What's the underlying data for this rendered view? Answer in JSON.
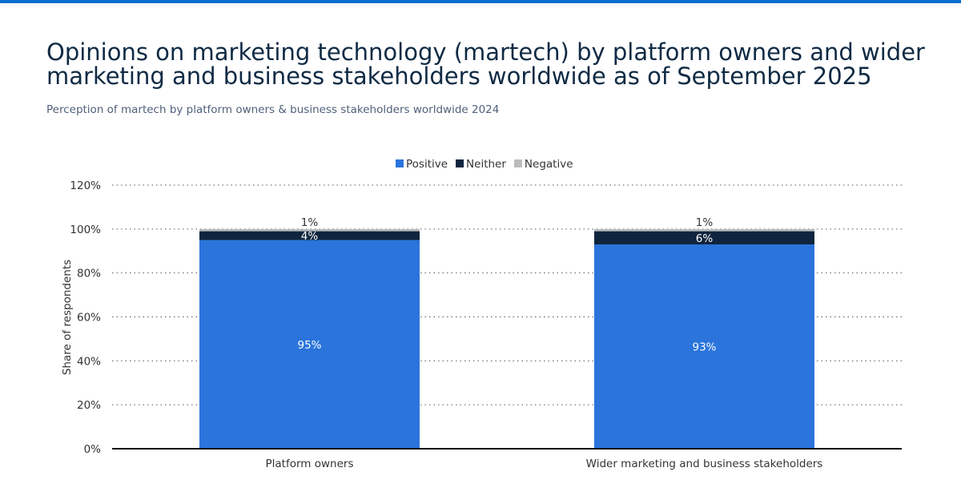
{
  "chart_data": {
    "type": "bar",
    "stacked": true,
    "title": "Opinions on marketing technology (martech) by platform owners and wider marketing and business stakeholders worldwide as of September 2025",
    "subtitle": "Perception of martech by platform owners & business stakeholders worldwide 2024",
    "xlabel": "",
    "ylabel": "Share of respondents",
    "ylim": [
      0,
      120
    ],
    "yticks": [
      0,
      20,
      40,
      60,
      80,
      100,
      120
    ],
    "ytick_labels": [
      "0%",
      "20%",
      "40%",
      "60%",
      "80%",
      "100%",
      "120%"
    ],
    "grid": true,
    "legend_placement": "top",
    "categories": [
      "Platform owners",
      "Wider marketing and business stakeholders"
    ],
    "series": [
      {
        "name": "Positive",
        "values": [
          95,
          93
        ],
        "labels": [
          "95%",
          "93%"
        ],
        "color": "#2a74dc"
      },
      {
        "name": "Neither",
        "values": [
          4,
          6
        ],
        "labels": [
          "4%",
          "6%"
        ],
        "color": "#0f253d"
      },
      {
        "name": "Negative",
        "values": [
          1,
          1
        ],
        "labels": [
          "1%",
          "1%"
        ],
        "color": "#bcbcbc"
      }
    ]
  }
}
